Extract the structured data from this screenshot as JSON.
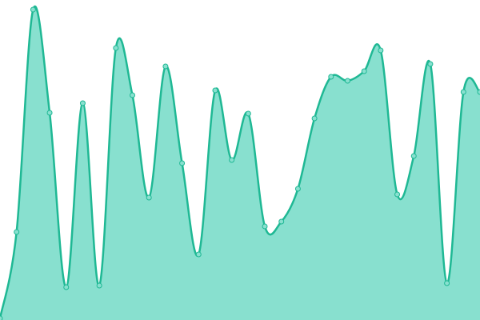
{
  "chart_data": {
    "type": "area",
    "categories": [
      null,
      null,
      null,
      null,
      null,
      null,
      null,
      null,
      null,
      null,
      null,
      null,
      null,
      null,
      null,
      null,
      null,
      null,
      null,
      null,
      null,
      null,
      null,
      null,
      null,
      null,
      null,
      null,
      null,
      null
    ],
    "values": [
      2,
      110,
      388,
      259,
      41,
      271,
      43,
      340,
      281,
      153,
      317,
      196,
      82,
      287,
      200,
      258,
      117,
      123,
      164,
      252,
      304,
      299,
      311,
      337,
      157,
      205,
      320,
      46,
      285,
      285
    ],
    "color": "#1fb894",
    "fill": "#88e0cf",
    "ylim": [
      0,
      400
    ],
    "grid": false,
    "markers": true
  }
}
